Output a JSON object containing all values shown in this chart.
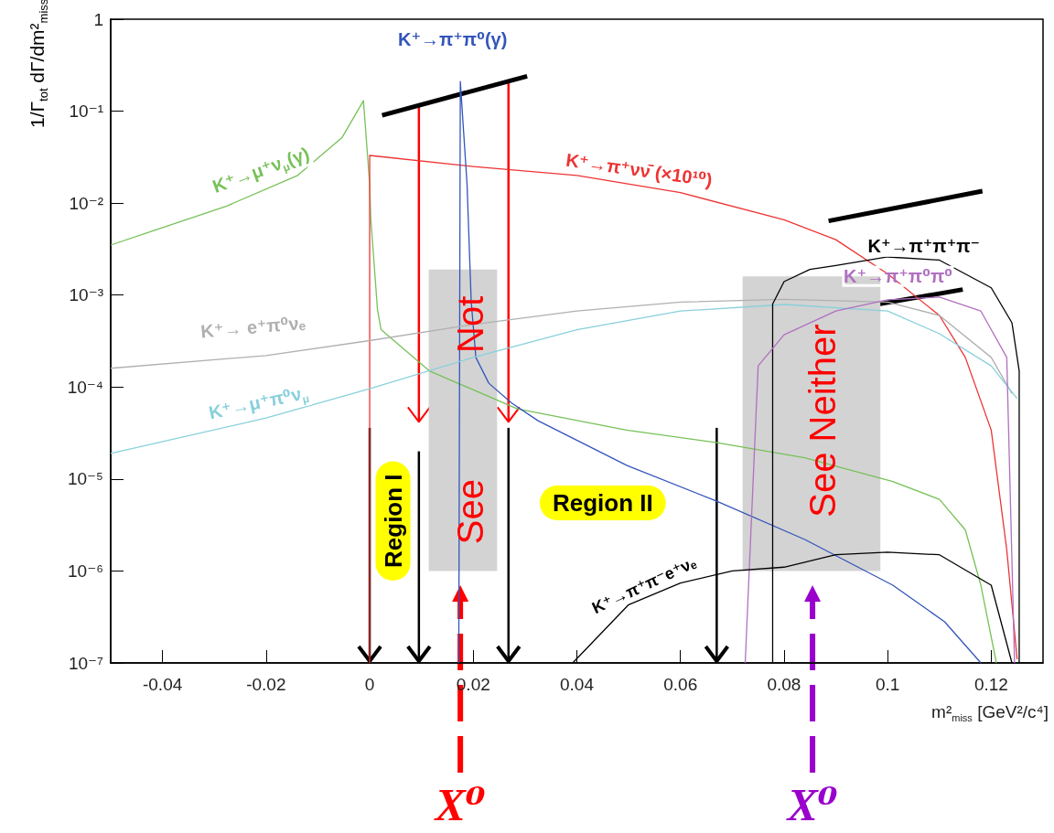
{
  "chart_data": {
    "type": "line",
    "xlabel": "m²$_{miss}$ [GeV²/c⁴]",
    "ylabel": "1/Γ$_{tot}$ dΓ/dm²$_{miss}$",
    "log": true,
    "marker": "none",
    "line_style": "solid",
    "xlim": [
      -0.05,
      0.13
    ],
    "xticks": [
      -0.04,
      -0.02,
      0,
      0.02,
      0.04,
      0.06,
      0.08,
      0.1,
      0.12
    ],
    "ylim": [
      1e-07,
      1
    ],
    "yticks": [
      {
        "value": 1e-07,
        "label": "10⁻⁷"
      },
      {
        "value": 1e-06,
        "label": "10⁻⁶"
      },
      {
        "value": 1e-05,
        "label": "10⁻⁵"
      },
      {
        "value": 0.0001,
        "label": "10⁻⁴"
      },
      {
        "value": 0.001,
        "label": "10⁻³"
      },
      {
        "value": 0.01,
        "label": "10⁻²"
      },
      {
        "value": 0.1,
        "label": "10⁻¹"
      },
      1
    ],
    "series": [
      {
        "name": "K⁺→μ⁺ν$_{μ}$(γ)",
        "color": "#77c159",
        "x": [
          -0.05,
          -0.0276,
          -0.0139,
          -0.0053,
          -0.0012,
          0,
          0.0002,
          0.0015,
          0.0022,
          0.0115,
          0.0285,
          0.0496,
          0.0668,
          0.084,
          0.101,
          0.11,
          0.115,
          0.118,
          0.121
        ],
        "values": [
          0.0035,
          0.0093,
          0.02,
          0.052,
          0.13,
          0.016,
          0.007,
          0.0007,
          0.00042,
          0.00015,
          5.8e-05,
          3.4e-05,
          2.5e-05,
          1.7e-05,
          9.4e-06,
          6e-06,
          2.8e-06,
          7e-07,
          1e-07
        ]
      },
      {
        "name": "K⁺→π⁺νν̄ (×10¹⁰)",
        "color": "#ee3333",
        "x": [
          0,
          0,
          0.02,
          0.04,
          0.06,
          0.08,
          0.09,
          0.1,
          0.11,
          0.115,
          0.12,
          0.123,
          0.125
        ],
        "values": [
          1e-07,
          0.033,
          0.025,
          0.02,
          0.013,
          0.0066,
          0.004,
          0.0017,
          0.0006,
          0.00021,
          3.4e-05,
          1.7e-06,
          1.1e-07
        ]
      },
      {
        "name": "K⁺→π⁺π⁰(γ)",
        "color": "#3355bb",
        "x": [
          0.0172,
          0.0175,
          0.0188,
          0.0196,
          0.0205,
          0.023,
          0.0274,
          0.0325,
          0.0497,
          0.0668,
          0.084,
          0.101,
          0.111,
          0.118
        ],
        "values": [
          1e-07,
          0.21,
          0.016,
          0.00085,
          0.00021,
          0.00011,
          6.7e-05,
          4.3e-05,
          1.4e-05,
          5.8e-06,
          2.2e-06,
          7e-07,
          2.8e-07,
          1e-07
        ]
      },
      {
        "name": "K⁺→ e⁺π⁰νₑ",
        "color": "#b0b0b0",
        "x": [
          -0.05,
          -0.02,
          0,
          0.02,
          0.04,
          0.06,
          0.08,
          0.1,
          0.11,
          0.12,
          0.124
        ],
        "values": [
          0.00016,
          0.00022,
          0.00032,
          0.00048,
          0.00067,
          0.00084,
          0.0009,
          0.00084,
          0.0006,
          0.00021,
          8.5e-05
        ]
      },
      {
        "name": "K⁺→μ⁺π⁰ν$_{μ}$",
        "color": "#88d0dc",
        "x": [
          -0.05,
          -0.02,
          0,
          0.02,
          0.04,
          0.06,
          0.08,
          0.1,
          0.11,
          0.12,
          0.125
        ],
        "values": [
          1.9e-05,
          4.6e-05,
          9.6e-05,
          0.00021,
          0.00042,
          0.00067,
          0.00079,
          0.00067,
          0.00038,
          0.00017,
          7.5e-05
        ]
      },
      {
        "name": "K⁺→π⁺π⁺π⁻",
        "color": "#000000",
        "x": [
          0.0778,
          0.0778,
          0.08,
          0.085,
          0.09,
          0.1,
          0.11,
          0.12,
          0.124,
          0.1254,
          0.1254
        ],
        "values": [
          1e-07,
          0.0008,
          0.0014,
          0.0019,
          0.0021,
          0.0026,
          0.0024,
          0.0012,
          0.0005,
          0.00015,
          1e-07
        ]
      },
      {
        "name": "K⁺→π⁺π⁰π⁰",
        "color": "#b070c0",
        "x": [
          0.0725,
          0.075,
          0.08,
          0.09,
          0.1,
          0.11,
          0.118,
          0.123,
          0.1245
        ],
        "values": [
          1e-07,
          0.00017,
          0.00037,
          0.00067,
          0.00089,
          0.00095,
          0.00067,
          0.00021,
          1e-07
        ]
      },
      {
        "name": "K⁺→π⁺π⁻e⁺νₑ",
        "color": "#000000",
        "x": [
          0.0392,
          0.05,
          0.06,
          0.07,
          0.08,
          0.09,
          0.1,
          0.11,
          0.12,
          0.124
        ],
        "values": [
          1e-07,
          4.3e-07,
          7.4e-07,
          1e-06,
          1.1e-06,
          1.5e-06,
          1.6e-06,
          1.5e-06,
          7e-07,
          1e-07
        ]
      }
    ],
    "bands": [
      {
        "axis": "x",
        "from": 0.0114,
        "to": 0.0246,
        "color": "#d3d3d3"
      },
      {
        "axis": "x",
        "from": 0.072,
        "to": 0.0986,
        "color": "#d3d3d3"
      }
    ],
    "ref_lines": [
      {
        "axis": "x",
        "value": 0,
        "color": "#000000"
      },
      {
        "axis": "x",
        "value": 0.0095,
        "color": "#000000"
      },
      {
        "axis": "x",
        "value": 0.0268,
        "color": "#000000"
      },
      {
        "axis": "x",
        "value": 0.067,
        "color": "#000000"
      },
      {
        "axis": "x",
        "value": 0.0095,
        "color": "#ff0000"
      },
      {
        "axis": "x",
        "value": 0.0268,
        "color": "#ff0000"
      },
      {
        "axis": "x",
        "value": 0.0175,
        "color": "#ff0000",
        "line_style": "dashed",
        "label": "X⁰"
      },
      {
        "axis": "x",
        "value": 0.0855,
        "color": "#9900cc",
        "line_style": "dashed",
        "label": "X⁰"
      }
    ],
    "annotations": [
      "Region I",
      "Region II",
      "See",
      "Not",
      "See Neither"
    ]
  }
}
